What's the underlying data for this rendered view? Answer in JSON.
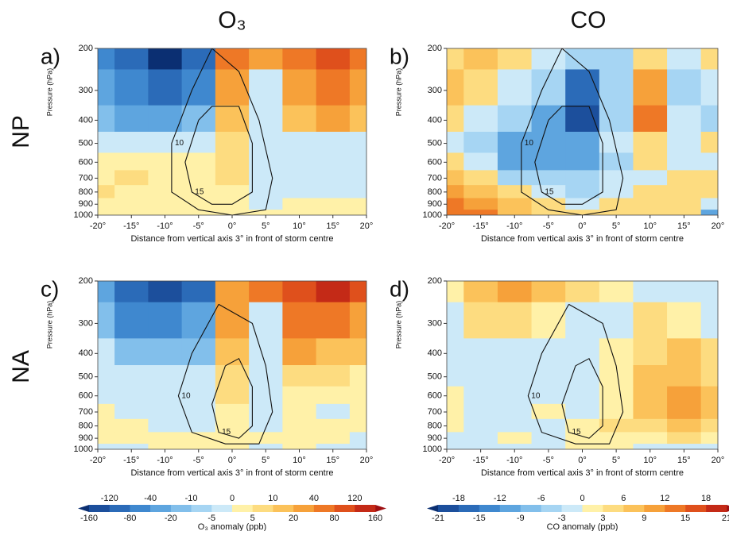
{
  "figure": {
    "columns": [
      "O₃",
      "CO"
    ],
    "rows": [
      "NP",
      "NA"
    ]
  },
  "chart_data": [
    {
      "type": "filled-contour",
      "panel_label": "a)",
      "xlabel": "Distance from vertical axis 3° in front of storm centre",
      "ylabel": "Pressure (hPa)",
      "xlim": [
        -20,
        20
      ],
      "ylim": [
        1000,
        200
      ],
      "log_y": true,
      "xticks": [
        {
          "value": -20,
          "label": "-20°"
        },
        {
          "value": -15,
          "label": "-15°"
        },
        {
          "value": -10,
          "label": "-10°"
        },
        {
          "value": -5,
          "label": "-5°"
        },
        {
          "value": 0,
          "label": "0°"
        },
        {
          "value": 5,
          "label": "5°"
        },
        {
          "value": 10,
          "label": "10°"
        },
        {
          "value": 15,
          "label": "15°"
        },
        {
          "value": 20,
          "label": "20°"
        }
      ],
      "yticks": [
        200,
        300,
        400,
        500,
        600,
        700,
        800,
        900,
        1000
      ],
      "levels": [
        -160,
        -120,
        -80,
        -40,
        -20,
        -10,
        -5,
        0,
        5,
        10,
        20,
        40,
        80,
        120,
        160
      ],
      "colors": [
        "#0b2f72",
        "#1c4f9c",
        "#2b6bb8",
        "#3f88cf",
        "#5ea5df",
        "#82bfeb",
        "#a6d5f3",
        "#cce9f8",
        "#fff1a8",
        "#fddc80",
        "#fbc25a",
        "#f6a13a",
        "#ee7826",
        "#df501c",
        "#c42a17",
        "#9e0f12"
      ],
      "x": [
        -20,
        -15,
        -10,
        -5,
        0,
        5,
        10,
        15,
        20
      ],
      "y": [
        200,
        300,
        400,
        500,
        600,
        700,
        800,
        900,
        1000
      ],
      "z": [
        [
          -40,
          -80,
          -160,
          -80,
          80,
          40,
          80,
          120,
          80
        ],
        [
          -20,
          -40,
          -80,
          -40,
          40,
          -3,
          40,
          80,
          40
        ],
        [
          -10,
          -20,
          -20,
          -10,
          20,
          -3,
          20,
          40,
          20
        ],
        [
          -3,
          -3,
          -3,
          -3,
          10,
          -3,
          -3,
          -3,
          -3
        ],
        [
          3,
          3,
          3,
          3,
          10,
          -3,
          -3,
          -3,
          -3
        ],
        [
          3,
          10,
          3,
          3,
          10,
          -3,
          -3,
          -3,
          -3
        ],
        [
          10,
          3,
          3,
          3,
          3,
          -3,
          -3,
          -3,
          -3
        ],
        [
          3,
          3,
          3,
          3,
          3,
          -3,
          3,
          3,
          3
        ],
        [
          3,
          3,
          3,
          3,
          3,
          3,
          3,
          3,
          3
        ]
      ],
      "contours": [
        {
          "level": 10,
          "x": [
            -3,
            -6,
            -9,
            -9,
            -5,
            0,
            5,
            6,
            4,
            1,
            -3
          ],
          "p": [
            200,
            300,
            500,
            800,
            950,
            1000,
            950,
            700,
            400,
            250,
            200
          ]
        },
        {
          "level": 15,
          "x": [
            -5,
            -7,
            -6,
            -3,
            0,
            3,
            3,
            1,
            -3,
            -5
          ],
          "p": [
            400,
            600,
            800,
            900,
            900,
            800,
            500,
            350,
            350,
            400
          ]
        }
      ]
    },
    {
      "type": "filled-contour",
      "panel_label": "b)",
      "xlabel": "Distance from vertical axis 3° in front of storm centre",
      "ylabel": "Pressure (hPa)",
      "xlim": [
        -20,
        20
      ],
      "ylim": [
        1000,
        200
      ],
      "log_y": true,
      "xticks": [
        {
          "value": -20,
          "label": "-20°"
        },
        {
          "value": -15,
          "label": "-15°"
        },
        {
          "value": -10,
          "label": "-10°"
        },
        {
          "value": -5,
          "label": "-5°"
        },
        {
          "value": 0,
          "label": "0°"
        },
        {
          "value": 5,
          "label": "5°"
        },
        {
          "value": 10,
          "label": "10°"
        },
        {
          "value": 15,
          "label": "15°"
        },
        {
          "value": 20,
          "label": "20°"
        }
      ],
      "yticks": [
        200,
        300,
        400,
        500,
        600,
        700,
        800,
        900,
        1000
      ],
      "levels": [
        -21,
        -18,
        -15,
        -12,
        -9,
        -6,
        -3,
        0,
        3,
        6,
        9,
        12,
        15,
        18,
        21
      ],
      "colors": [
        "#0b2f72",
        "#1c4f9c",
        "#2b6bb8",
        "#3f88cf",
        "#5ea5df",
        "#82bfeb",
        "#a6d5f3",
        "#cce9f8",
        "#fff1a8",
        "#fddc80",
        "#fbc25a",
        "#f6a13a",
        "#ee7826",
        "#df501c",
        "#c42a17",
        "#9e0f12"
      ],
      "x": [
        -20,
        -15,
        -10,
        -5,
        0,
        5,
        10,
        15,
        20
      ],
      "y": [
        200,
        300,
        400,
        500,
        600,
        700,
        800,
        900,
        1000
      ],
      "z": [
        [
          4,
          7,
          4,
          -2,
          -5,
          -5,
          4,
          -2,
          4
        ],
        [
          7,
          4,
          -2,
          -5,
          -15,
          -5,
          10,
          -5,
          -2
        ],
        [
          4,
          -2,
          -5,
          -10,
          -18,
          -5,
          13,
          -2,
          -5
        ],
        [
          -2,
          -5,
          -10,
          -10,
          -10,
          -2,
          4,
          -2,
          4
        ],
        [
          4,
          -2,
          -10,
          -10,
          -10,
          -5,
          4,
          -2,
          -2
        ],
        [
          7,
          4,
          -5,
          -5,
          -5,
          -2,
          -2,
          4,
          4
        ],
        [
          10,
          7,
          4,
          -2,
          -5,
          -2,
          4,
          4,
          4
        ],
        [
          13,
          10,
          7,
          4,
          -2,
          4,
          4,
          4,
          -2
        ],
        [
          13,
          13,
          7,
          4,
          4,
          4,
          4,
          4,
          -10
        ]
      ],
      "contours": [
        {
          "level": 10,
          "x": [
            -3,
            -6,
            -9,
            -9,
            -5,
            0,
            5,
            6,
            4,
            1,
            -3
          ],
          "p": [
            200,
            300,
            500,
            800,
            950,
            1000,
            950,
            700,
            400,
            250,
            200
          ]
        },
        {
          "level": 15,
          "x": [
            -5,
            -7,
            -6,
            -3,
            0,
            3,
            3,
            1,
            -3,
            -5
          ],
          "p": [
            400,
            600,
            800,
            900,
            900,
            800,
            500,
            350,
            350,
            400
          ]
        }
      ]
    },
    {
      "type": "filled-contour",
      "panel_label": "c)",
      "xlabel": "Distance from vertical axis 3° in front of storm centre",
      "ylabel": "Pressure (hPa)",
      "xlim": [
        -20,
        20
      ],
      "ylim": [
        1000,
        200
      ],
      "log_y": true,
      "xticks": [
        {
          "value": -20,
          "label": "-20°"
        },
        {
          "value": -15,
          "label": "-15°"
        },
        {
          "value": -10,
          "label": "-10°"
        },
        {
          "value": -5,
          "label": "-5°"
        },
        {
          "value": 0,
          "label": "0°"
        },
        {
          "value": 5,
          "label": "5°"
        },
        {
          "value": 10,
          "label": "10°"
        },
        {
          "value": 15,
          "label": "15°"
        },
        {
          "value": 20,
          "label": "20°"
        }
      ],
      "yticks": [
        200,
        300,
        400,
        500,
        600,
        700,
        800,
        900,
        1000
      ],
      "levels": [
        -160,
        -120,
        -80,
        -40,
        -20,
        -10,
        -5,
        0,
        5,
        10,
        20,
        40,
        80,
        120,
        160
      ],
      "colors": [
        "#0b2f72",
        "#1c4f9c",
        "#2b6bb8",
        "#3f88cf",
        "#5ea5df",
        "#82bfeb",
        "#a6d5f3",
        "#cce9f8",
        "#fff1a8",
        "#fddc80",
        "#fbc25a",
        "#f6a13a",
        "#ee7826",
        "#df501c",
        "#c42a17",
        "#9e0f12"
      ],
      "colorbar_label": "O₃ anomaly (ppb)",
      "x": [
        -20,
        -15,
        -10,
        -5,
        0,
        5,
        10,
        15,
        20
      ],
      "y": [
        200,
        300,
        400,
        500,
        600,
        700,
        800,
        900,
        1000
      ],
      "z": [
        [
          -20,
          -80,
          -120,
          -80,
          40,
          80,
          120,
          160,
          120
        ],
        [
          -10,
          -40,
          -40,
          -20,
          40,
          -3,
          80,
          80,
          40
        ],
        [
          -3,
          -10,
          -10,
          -10,
          20,
          -3,
          40,
          20,
          20
        ],
        [
          -3,
          -3,
          -3,
          -3,
          10,
          -3,
          10,
          10,
          3
        ],
        [
          -3,
          -3,
          -3,
          -3,
          10,
          -3,
          3,
          3,
          3
        ],
        [
          3,
          -3,
          -3,
          -3,
          3,
          -3,
          3,
          -3,
          3
        ],
        [
          3,
          3,
          -3,
          -3,
          3,
          -3,
          3,
          3,
          3
        ],
        [
          3,
          3,
          3,
          3,
          3,
          3,
          3,
          3,
          -3
        ],
        [
          -3,
          -3,
          3,
          3,
          3,
          -3,
          3,
          -3,
          -3
        ]
      ],
      "contours": [
        {
          "level": 10,
          "x": [
            -2,
            -6,
            -8,
            -6,
            -1,
            4,
            6,
            5,
            3,
            -2
          ],
          "p": [
            250,
            400,
            600,
            850,
            950,
            950,
            700,
            450,
            300,
            250
          ]
        },
        {
          "level": 15,
          "x": [
            -1,
            -3,
            -2,
            1,
            3,
            3,
            1,
            -1
          ],
          "p": [
            450,
            650,
            850,
            900,
            800,
            550,
            420,
            450
          ]
        }
      ]
    },
    {
      "type": "filled-contour",
      "panel_label": "d)",
      "xlabel": "Distance from vertical axis 3° in front of storm centre",
      "ylabel": "Pressure (hPa)",
      "xlim": [
        -20,
        20
      ],
      "ylim": [
        1000,
        200
      ],
      "log_y": true,
      "xticks": [
        {
          "value": -20,
          "label": "-20°"
        },
        {
          "value": -15,
          "label": "-15°"
        },
        {
          "value": -10,
          "label": "-10°"
        },
        {
          "value": -5,
          "label": "-5°"
        },
        {
          "value": 0,
          "label": "0°"
        },
        {
          "value": 5,
          "label": "5°"
        },
        {
          "value": 10,
          "label": "10°"
        },
        {
          "value": 15,
          "label": "15°"
        },
        {
          "value": 20,
          "label": "20°"
        }
      ],
      "yticks": [
        200,
        300,
        400,
        500,
        600,
        700,
        800,
        900,
        1000
      ],
      "levels": [
        -21,
        -18,
        -15,
        -12,
        -9,
        -6,
        -3,
        0,
        3,
        6,
        9,
        12,
        15,
        18,
        21
      ],
      "colors": [
        "#0b2f72",
        "#1c4f9c",
        "#2b6bb8",
        "#3f88cf",
        "#5ea5df",
        "#82bfeb",
        "#a6d5f3",
        "#cce9f8",
        "#fff1a8",
        "#fddc80",
        "#fbc25a",
        "#f6a13a",
        "#ee7826",
        "#df501c",
        "#c42a17",
        "#9e0f12"
      ],
      "colorbar_label": "CO anomaly (ppb)",
      "x": [
        -20,
        -15,
        -10,
        -5,
        0,
        5,
        10,
        15,
        20
      ],
      "y": [
        200,
        300,
        400,
        500,
        600,
        700,
        800,
        900,
        1000
      ],
      "z": [
        [
          2,
          7,
          10,
          7,
          4,
          2,
          -2,
          -2,
          -2
        ],
        [
          -2,
          4,
          4,
          2,
          -2,
          -2,
          4,
          2,
          -2
        ],
        [
          -2,
          -2,
          -2,
          -2,
          -2,
          2,
          4,
          7,
          4
        ],
        [
          -2,
          -2,
          -2,
          -2,
          -2,
          2,
          7,
          7,
          4
        ],
        [
          2,
          -2,
          -2,
          -2,
          -2,
          2,
          7,
          10,
          7
        ],
        [
          2,
          -2,
          -2,
          2,
          -2,
          2,
          7,
          10,
          7
        ],
        [
          2,
          -2,
          -2,
          -2,
          2,
          4,
          4,
          7,
          4
        ],
        [
          -2,
          -2,
          2,
          -2,
          2,
          2,
          2,
          4,
          2
        ],
        [
          -2,
          -2,
          -2,
          -2,
          2,
          2,
          -2,
          -2,
          -2
        ]
      ],
      "contours": [
        {
          "level": 10,
          "x": [
            -2,
            -6,
            -8,
            -6,
            -1,
            4,
            6,
            5,
            3,
            -2
          ],
          "p": [
            250,
            400,
            600,
            850,
            950,
            950,
            700,
            450,
            300,
            250
          ]
        },
        {
          "level": 15,
          "x": [
            -1,
            -3,
            -2,
            1,
            3,
            3,
            1,
            -1
          ],
          "p": [
            450,
            650,
            850,
            900,
            800,
            550,
            420,
            450
          ]
        }
      ]
    }
  ]
}
